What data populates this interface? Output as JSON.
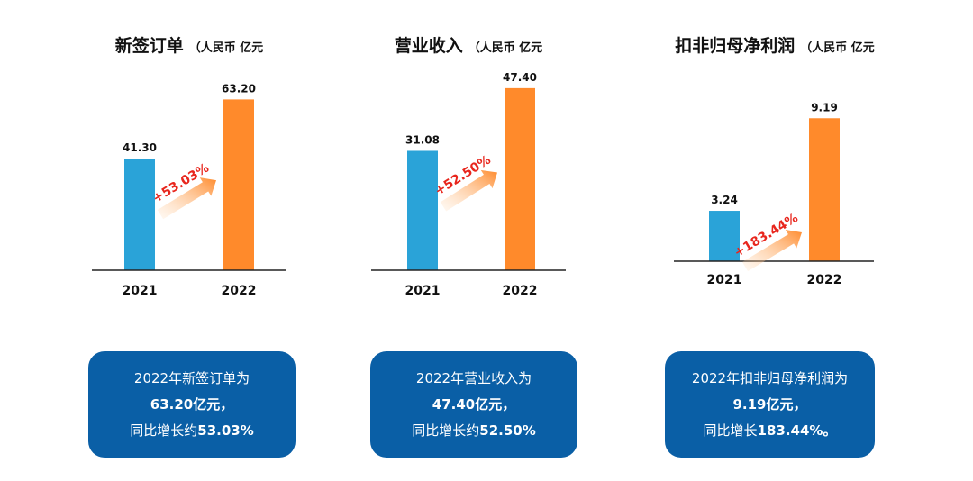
{
  "colors": {
    "bar_2021": "#2aa3d8",
    "bar_2022": "#ff8a2b",
    "growth_text": "#e8261d",
    "summary_bg": "#0a5fa6"
  },
  "chart_data": [
    {
      "type": "bar",
      "title": "新签订单",
      "unit": "（人民币 亿元",
      "categories": [
        "2021",
        "2022"
      ],
      "values": [
        41.3,
        63.2
      ],
      "value_labels": [
        "41.30",
        "63.20"
      ],
      "ylim": [
        0,
        70
      ],
      "growth_label": "+53.03%"
    },
    {
      "type": "bar",
      "title": "营业收入",
      "unit": "（人民币 亿元",
      "categories": [
        "2021",
        "2022"
      ],
      "values": [
        31.08,
        47.4
      ],
      "value_labels": [
        "31.08",
        "47.40"
      ],
      "ylim": [
        0,
        53
      ],
      "growth_label": "+52.50%"
    },
    {
      "type": "bar",
      "title": "扣非归母净利润",
      "unit": "（人民币 亿元",
      "categories": [
        "2021",
        "2022"
      ],
      "values": [
        3.24,
        9.19
      ],
      "value_labels": [
        "3.24",
        "9.19"
      ],
      "ylim": [
        0,
        11
      ],
      "growth_label": "+183.44%"
    }
  ],
  "summaries": [
    {
      "line1": "2022年新签订单为",
      "line2": "63.20亿元，",
      "line3_prefix": "同比增长约",
      "line3_value": "53.03%"
    },
    {
      "line1": "2022年营业收入为",
      "line2": "47.40亿元，",
      "line3_prefix": "同比增长约",
      "line3_value": "52.50%"
    },
    {
      "line1": "2022年扣非归母净利润为",
      "line2": "9.19亿元，",
      "line3_prefix": "同比增长",
      "line3_value": "183.44%。"
    }
  ]
}
